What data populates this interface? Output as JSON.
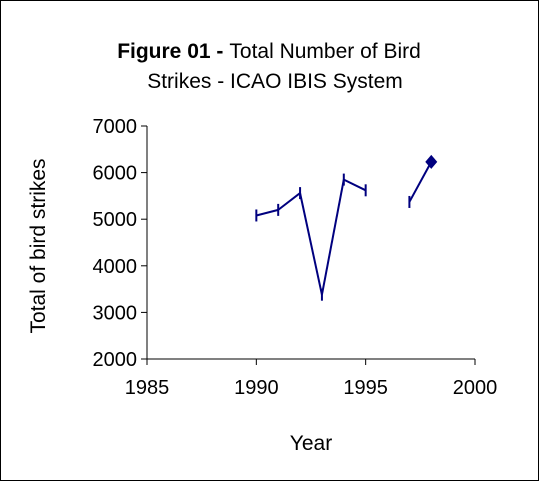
{
  "chart_data": {
    "type": "line",
    "title_bold": "Figure 01 -",
    "title_rest": "Total Number of Bird",
    "title_line2": "Strikes - ICAO IBIS System",
    "xlabel": "Year",
    "ylabel": "Total of bird strikes",
    "xlim": [
      1985,
      2000
    ],
    "ylim": [
      2000,
      7000
    ],
    "xticks": [
      "1985",
      "1990",
      "1995",
      "2000"
    ],
    "yticks": [
      "2000",
      "3000",
      "4000",
      "5000",
      "6000",
      "7000"
    ],
    "grid": false,
    "legend": "none",
    "series": [
      {
        "color": "#00007f",
        "points": [
          {
            "x": 1990,
            "y": 5080
          },
          {
            "x": 1991,
            "y": 5200
          },
          {
            "x": 1992,
            "y": 5560
          },
          {
            "x": 1993,
            "y": 3380
          },
          {
            "x": 1994,
            "y": 5850
          },
          {
            "x": 1995,
            "y": 5620
          },
          {
            "x": 1996,
            "y": null
          },
          {
            "x": 1997,
            "y": 5370
          },
          {
            "x": 1998,
            "y": 6230
          }
        ]
      }
    ]
  }
}
